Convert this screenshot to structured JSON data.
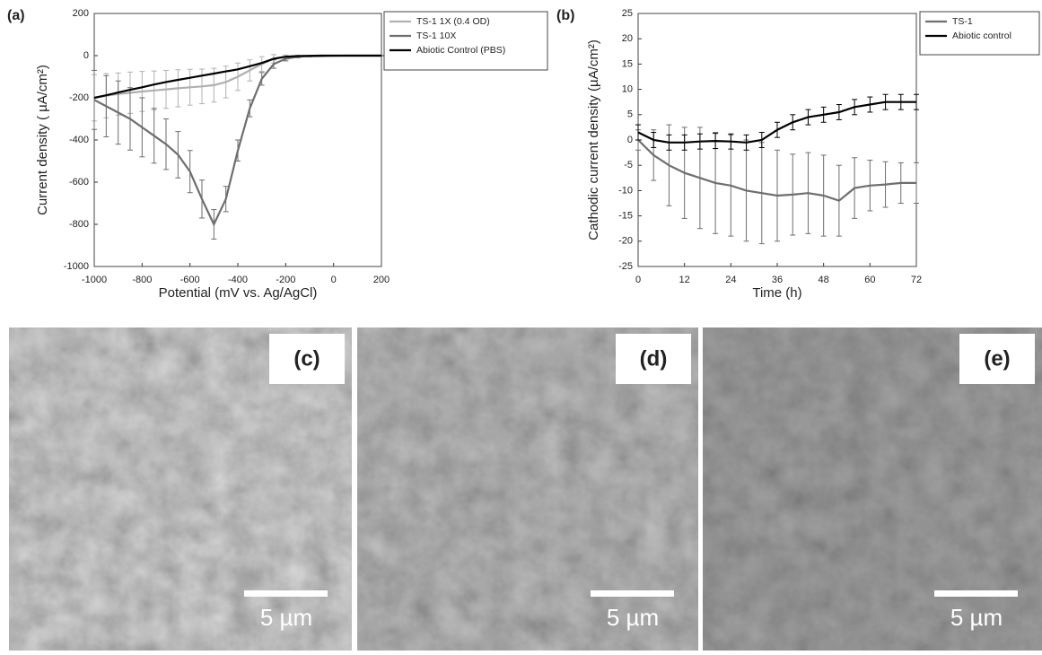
{
  "chart_data": [
    {
      "type": "line",
      "label": "(a)",
      "x_label": "Potential (mV vs. Ag/AgCl)",
      "y_label": "Current density ( µA/cm²)",
      "x": [
        -1000,
        -950,
        -900,
        -850,
        -800,
        -750,
        -700,
        -650,
        -600,
        -550,
        -500,
        -450,
        -400,
        -350,
        -300,
        -250,
        -200,
        -150,
        -100,
        -50,
        0,
        50,
        100,
        150,
        200
      ],
      "series": [
        {
          "name": "TS-1 1X (0.4 OD)",
          "color": "#b0b0b0",
          "values": [
            -200,
            -190,
            -182,
            -176,
            -170,
            -165,
            -160,
            -155,
            -150,
            -146,
            -140,
            -125,
            -100,
            -70,
            -40,
            -15,
            -5,
            -2,
            -1,
            0,
            0,
            0,
            0,
            0,
            0
          ],
          "errors": [
            110,
            105,
            100,
            98,
            95,
            92,
            90,
            88,
            85,
            82,
            80,
            75,
            65,
            50,
            35,
            20,
            8,
            4,
            2,
            1,
            1,
            1,
            1,
            1,
            1
          ]
        },
        {
          "name": "TS-1 10X",
          "color": "#6e6e6e",
          "values": [
            -210,
            -240,
            -270,
            -300,
            -340,
            -380,
            -420,
            -470,
            -550,
            -680,
            -800,
            -680,
            -450,
            -250,
            -110,
            -40,
            -15,
            -5,
            -3,
            -2,
            -1,
            0,
            0,
            0,
            0
          ],
          "errors": [
            140,
            145,
            150,
            148,
            140,
            130,
            120,
            110,
            100,
            90,
            70,
            60,
            50,
            40,
            30,
            20,
            10,
            5,
            3,
            2,
            1,
            1,
            1,
            1,
            1
          ]
        },
        {
          "name": "Abiotic Control (PBS)",
          "color": "#000000",
          "values": [
            -200,
            -188,
            -175,
            -162,
            -150,
            -137,
            -125,
            -115,
            -105,
            -95,
            -85,
            -75,
            -65,
            -50,
            -35,
            -15,
            -5,
            -2,
            -1,
            0,
            0,
            0,
            0,
            0,
            0
          ]
        }
      ],
      "xlim": [
        -1000,
        200
      ],
      "xticks": [
        -1000,
        -800,
        -600,
        -400,
        -200,
        0,
        200
      ],
      "ylim": [
        -1000,
        200
      ],
      "yticks": [
        -1000,
        -800,
        -600,
        -400,
        -200,
        0,
        200
      ],
      "legend": "upper right"
    },
    {
      "type": "line",
      "label": "(b)",
      "x_label": "Time (h)",
      "y_label": "Cathodic current density (µA/cm²)",
      "x": [
        0,
        4,
        8,
        12,
        16,
        20,
        24,
        28,
        32,
        36,
        40,
        44,
        48,
        52,
        56,
        60,
        64,
        68,
        72
      ],
      "series": [
        {
          "name": "TS-1",
          "color": "#6e6e6e",
          "values": [
            0,
            -3,
            -5,
            -6.5,
            -7.5,
            -8.5,
            -9,
            -10,
            -10.5,
            -11,
            -10.8,
            -10.5,
            -11,
            -12,
            -9.5,
            -9,
            -8.8,
            -8.5,
            -8.5
          ],
          "errors": [
            2,
            5,
            8,
            9,
            10,
            10,
            10,
            10,
            10,
            9,
            8,
            8,
            8,
            7,
            6,
            5,
            4.5,
            4,
            4
          ]
        },
        {
          "name": "Abiotic control",
          "color": "#000000",
          "values": [
            1.5,
            0,
            -0.5,
            -0.5,
            -0.3,
            -0.2,
            -0.3,
            -0.5,
            0,
            2,
            3.5,
            4.5,
            5,
            5.5,
            6.5,
            7,
            7.5,
            7.5,
            7.5
          ],
          "errors": [
            1.5,
            1.5,
            1.5,
            1.5,
            1.5,
            1.5,
            1.5,
            1.5,
            1.5,
            1.5,
            1.5,
            1.5,
            1.5,
            1.5,
            1.5,
            1.5,
            1.5,
            1.5,
            1.5
          ]
        }
      ],
      "xlim": [
        0,
        72
      ],
      "xticks": [
        0,
        12,
        24,
        36,
        48,
        60,
        72
      ],
      "ylim": [
        -25,
        25
      ],
      "yticks": [
        -25,
        -20,
        -15,
        -10,
        -5,
        0,
        5,
        10,
        15,
        20,
        25
      ],
      "legend": "upper right"
    }
  ],
  "panels": [
    {
      "label": "(c)",
      "scale": "5 µm"
    },
    {
      "label": "(d)",
      "scale": "5 µm"
    },
    {
      "label": "(e)",
      "scale": "5 µm"
    }
  ]
}
